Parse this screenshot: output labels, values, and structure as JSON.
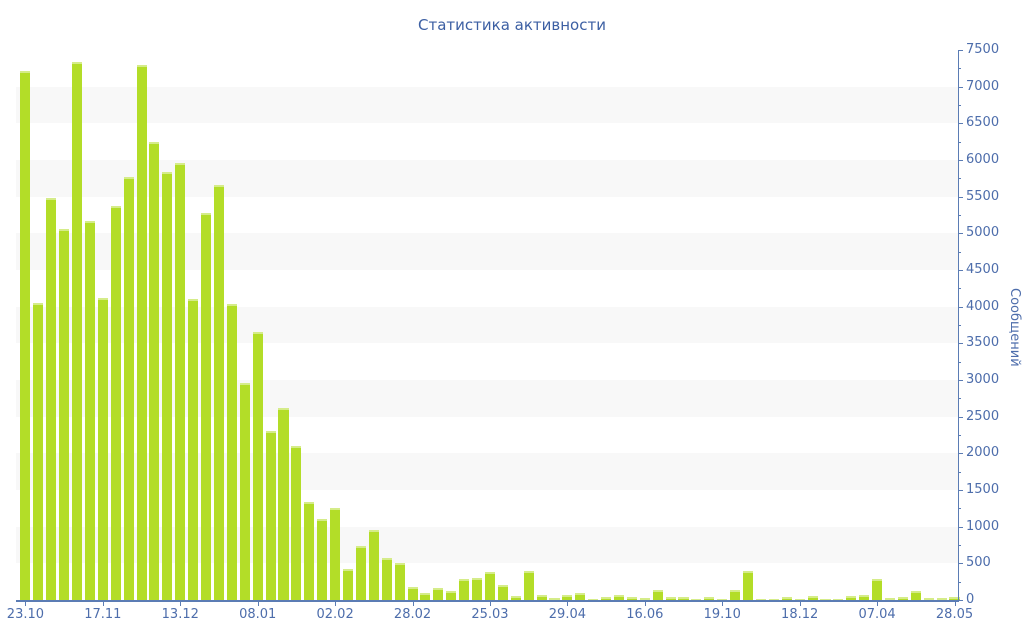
{
  "title": "Статистика активности",
  "chart_data": {
    "type": "bar",
    "title": "Статистика активности",
    "xlabel": "",
    "ylabel": "Сообщений",
    "ylim": [
      0,
      7500
    ],
    "y_major_step": 500,
    "y_minor_step": 250,
    "legend": "none",
    "grid": "alternating-horizontal-bands",
    "band_color": "#f8f8f8",
    "bar_color": "#b3dd28",
    "axis_color": "#5b7cb4",
    "tick_label_color": "#4d6dab",
    "title_color": "#3c5fa3",
    "x_tick_labels": [
      "23.10",
      "17.11",
      "13.12",
      "08.01",
      "02.02",
      "28.02",
      "25.03",
      "29.04",
      "16.06",
      "19.10",
      "18.12",
      "07.04",
      "28.05"
    ],
    "x_tick_indices": [
      0,
      6,
      12,
      18,
      24,
      30,
      36,
      42,
      48,
      54,
      60,
      66,
      72
    ],
    "values": [
      7220,
      4050,
      5480,
      5060,
      7330,
      5170,
      4120,
      5370,
      5770,
      7300,
      6240,
      5840,
      5960,
      4100,
      5280,
      5660,
      4040,
      2960,
      3650,
      2310,
      2620,
      2100,
      1340,
      1110,
      1250,
      420,
      730,
      950,
      570,
      500,
      180,
      100,
      170,
      120,
      290,
      300,
      380,
      200,
      60,
      400,
      65,
      30,
      65,
      100,
      20,
      45,
      70,
      45,
      30,
      130,
      40,
      40,
      20,
      40,
      15,
      130,
      390,
      15,
      20,
      45,
      20,
      55,
      20,
      20,
      60,
      70,
      280,
      30,
      45,
      120,
      25,
      30,
      45
    ]
  }
}
